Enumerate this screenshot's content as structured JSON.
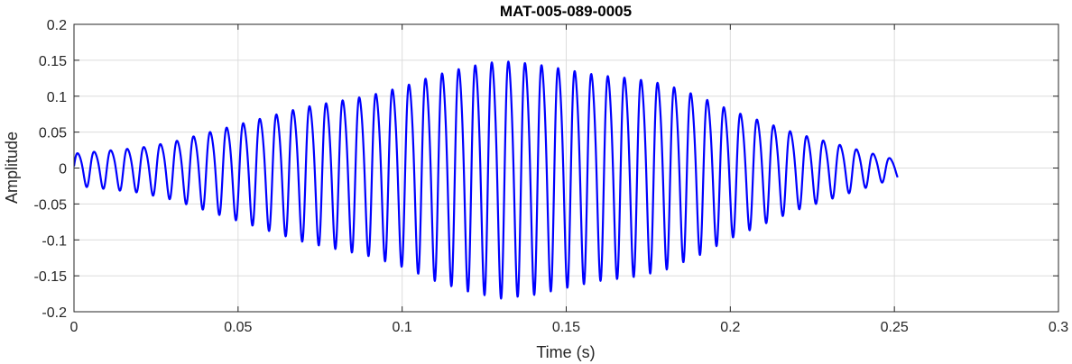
{
  "chart_data": {
    "type": "line",
    "title": "MAT-005-089-0005",
    "xlabel": "Time (s)",
    "ylabel": "Amplitude",
    "xlim": [
      0,
      0.3
    ],
    "ylim": [
      -0.2,
      0.2
    ],
    "grid": true,
    "x_ticks": [
      0,
      0.05,
      0.1,
      0.15,
      0.2,
      0.25,
      0.3
    ],
    "x_tick_labels": [
      "0",
      "0.05",
      "0.1",
      "0.15",
      "0.2",
      "0.25",
      "0.3"
    ],
    "y_ticks": [
      -0.2,
      -0.15,
      -0.1,
      -0.05,
      0,
      0.05,
      0.1,
      0.15,
      0.2
    ],
    "y_tick_labels": [
      "-0.2",
      "-0.15",
      "-0.1",
      "-0.05",
      "0",
      "0.05",
      "0.1",
      "0.15",
      "0.2"
    ],
    "series": [
      {
        "color": "#0000ff",
        "duration": 0.251,
        "carrier_hz": 198,
        "envelope": {
          "t": [
            0,
            0.01,
            0.02,
            0.03,
            0.04,
            0.05,
            0.06,
            0.07,
            0.08,
            0.09,
            0.1,
            0.11,
            0.12,
            0.13,
            0.14,
            0.15,
            0.16,
            0.17,
            0.18,
            0.19,
            0.2,
            0.21,
            0.22,
            0.23,
            0.24,
            0.25
          ],
          "a": [
            0.025,
            0.03,
            0.035,
            0.045,
            0.06,
            0.075,
            0.09,
            0.105,
            0.115,
            0.125,
            0.14,
            0.16,
            0.175,
            0.185,
            0.18,
            0.17,
            0.16,
            0.155,
            0.145,
            0.125,
            0.1,
            0.08,
            0.06,
            0.045,
            0.03,
            0.015
          ]
        }
      }
    ]
  }
}
